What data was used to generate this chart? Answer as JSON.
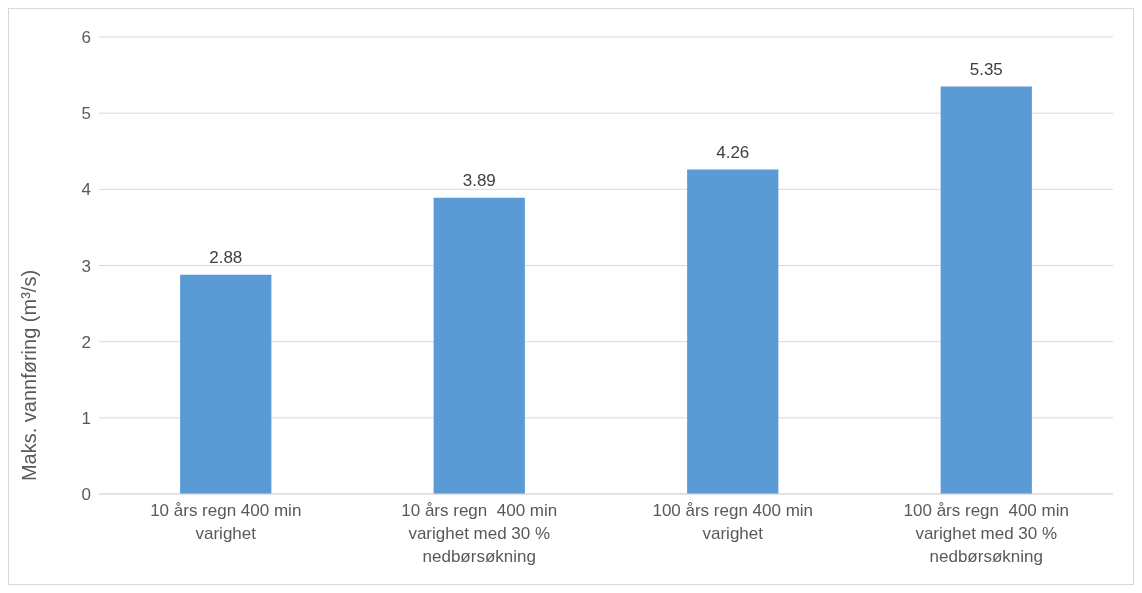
{
  "chart_data": {
    "type": "bar",
    "ylabel": "Maks. vannføring (m³/s)",
    "categories": [
      "10 års regn 400 min varighet",
      "10 års regn  400 min varighet med 30 % nedbørsøkning",
      "100 års regn 400 min varighet",
      "100 års regn  400 min varighet med 30 % nedbørsøkning"
    ],
    "values": [
      2.88,
      3.89,
      4.26,
      5.35
    ],
    "color": "#5b9bd5",
    "ylim": [
      0,
      6
    ],
    "yticks": [
      0,
      1,
      2,
      3,
      4,
      5,
      6
    ],
    "grid": "y",
    "data_labels": true
  }
}
